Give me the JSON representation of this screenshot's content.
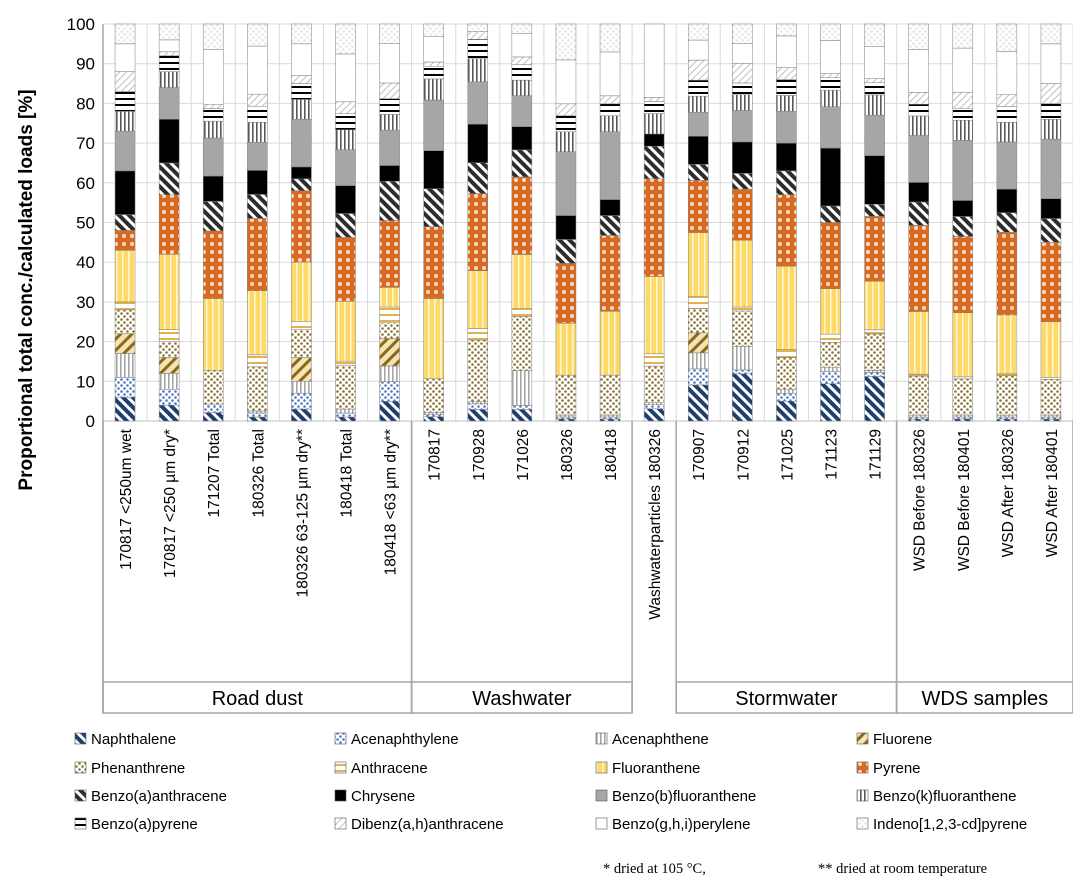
{
  "chart_data": {
    "type": "bar",
    "stacked": true,
    "ylabel": "Proportional total conc./calculated loads [%]",
    "ylim": [
      0,
      100
    ],
    "yticks": [
      0,
      10,
      20,
      30,
      40,
      50,
      60,
      70,
      80,
      90,
      100
    ],
    "grid": true,
    "legend_position": "bottom",
    "groups": [
      {
        "label": "Road dust",
        "count": 7
      },
      {
        "label": "Washwater",
        "count": 5
      },
      {
        "label": "",
        "count": 1
      },
      {
        "label": "Stormwater",
        "count": 5
      },
      {
        "label": "WDS samples",
        "count": 4
      }
    ],
    "categories": [
      "170817 <250um  wet",
      "170817 <250 µm dry*",
      "171207 Total",
      "180326 Total",
      "180326  63-125  µm dry**",
      "180418 Total",
      "180418 <63 µm dry**",
      "170817",
      "170928",
      "171026",
      "180326",
      "180418",
      "Washwaterparticles 180326",
      "170907",
      "170912",
      "171025",
      "171123",
      "171129",
      "WSD Before 180326",
      "WSD Before 180401",
      "WSD After 180326",
      "WSD After 180401"
    ],
    "series": [
      {
        "name": "Naphthalene",
        "color": "#1f3f6e",
        "pattern": "stripe",
        "values": [
          6,
          4,
          2,
          1,
          3,
          1,
          5,
          1,
          3,
          3,
          0.5,
          0.5,
          3,
          9,
          12,
          5,
          9,
          11,
          0.5,
          0.5,
          0.5,
          0.5
        ]
      },
      {
        "name": "Acenaphthylene",
        "color": "#4f7ac7",
        "pattern": "dots",
        "values": [
          5,
          4,
          2,
          1,
          4,
          1,
          5,
          0.5,
          1.5,
          1,
          0.5,
          0.5,
          1,
          4,
          1,
          2,
          3,
          1,
          0.5,
          0.5,
          0.5,
          0.5
        ]
      },
      {
        "name": "Acenaphthene",
        "color": "#a6a6a6",
        "pattern": "vlines",
        "values": [
          6,
          4,
          0,
          0.5,
          3,
          1,
          4,
          0.5,
          0.5,
          9,
          0.5,
          0.5,
          0.5,
          4,
          6,
          1,
          1,
          0.5,
          0.5,
          0.5,
          0.5,
          0.5
        ]
      },
      {
        "name": "Fluorene",
        "color": "#8b6914",
        "pattern": "diag",
        "values": [
          5,
          4,
          0,
          0,
          6,
          0,
          7,
          0,
          0,
          0,
          0,
          0,
          0,
          5,
          0,
          0,
          0,
          0,
          0,
          0,
          0,
          0
        ]
      },
      {
        "name": "Phenanthrene",
        "color": "#8b7536",
        "pattern": "dots",
        "values": [
          6,
          4,
          8,
          11,
          7,
          11,
          4,
          8,
          16,
          14,
          10,
          10,
          9,
          6,
          9,
          8,
          6,
          9,
          10,
          9,
          10,
          9
        ]
      },
      {
        "name": "Anthracene",
        "color": "#e6b04a",
        "pattern": "hline",
        "values": [
          2,
          3,
          0,
          3,
          2,
          1,
          4,
          0,
          3,
          2,
          0,
          0,
          3,
          3,
          1,
          2,
          2,
          1,
          0.5,
          0.5,
          0.5,
          0.5
        ]
      },
      {
        "name": "Fluoranthene",
        "color": "#ffd966",
        "pattern": "vstripes",
        "values": [
          13,
          19,
          17,
          16,
          15,
          15,
          5,
          19,
          15,
          14,
          13,
          16,
          19,
          16,
          17,
          21,
          11,
          12,
          16,
          16,
          15,
          14
        ]
      },
      {
        "name": "Pyrene",
        "color": "#d86a22",
        "pattern": "circles",
        "values": [
          5,
          15,
          16,
          18,
          18,
          16,
          17,
          17,
          20,
          20,
          15,
          19,
          24,
          13,
          13,
          18,
          16,
          16,
          22,
          19,
          21,
          20
        ]
      },
      {
        "name": "Benzo(a)anthracene",
        "color": "#2d2d2d",
        "pattern": "stripe",
        "values": [
          4,
          8,
          7,
          6,
          3,
          6,
          10,
          9,
          8,
          7,
          6,
          5,
          8,
          4,
          4,
          6,
          4,
          3,
          6,
          5,
          5,
          6
        ]
      },
      {
        "name": "Chrysene",
        "color": "#000000",
        "pattern": "solid",
        "values": [
          11,
          11,
          6,
          6,
          3,
          7,
          4,
          9,
          10,
          6,
          6,
          4,
          3,
          7,
          8,
          7,
          14,
          12,
          5,
          4,
          6,
          5
        ]
      },
      {
        "name": "Benzo(b)fluoranthene",
        "color": "#a6a6a6",
        "pattern": "solid",
        "values": [
          10,
          8,
          9,
          7,
          12,
          9,
          9,
          12,
          11,
          8,
          16,
          17,
          0,
          6,
          8,
          8,
          10,
          10,
          12,
          15,
          12,
          15
        ]
      },
      {
        "name": "Benzo(k)fluoranthene",
        "color": "#595959",
        "pattern": "vlines",
        "values": [
          5,
          4,
          4,
          5,
          5,
          5,
          4,
          5,
          6,
          4,
          5,
          4,
          5,
          4,
          4,
          4,
          4,
          5,
          5,
          5,
          5,
          5
        ]
      },
      {
        "name": "Benzo(a)pyrene",
        "color": "#000000",
        "pattern": "hline",
        "values": [
          5,
          4,
          3,
          4,
          4,
          4,
          4,
          3,
          5,
          4,
          4,
          3,
          3,
          4,
          3,
          4,
          3,
          3,
          3,
          3,
          4,
          4
        ]
      },
      {
        "name": "Dibenz(a,h)anthracene",
        "color": "#bfbfbf",
        "pattern": "crosshatch",
        "values": [
          5,
          1,
          1,
          3,
          2,
          3,
          4,
          1,
          2,
          2,
          3,
          2,
          1,
          5,
          5,
          3,
          1,
          1,
          3,
          4,
          3,
          5
        ]
      },
      {
        "name": "Benzo(g,h,i)perylene",
        "color": "#ffffff",
        "pattern": "solid",
        "values": [
          7,
          3,
          13,
          12,
          8,
          12,
          10,
          6,
          0,
          6,
          11,
          11,
          18,
          5,
          5,
          8,
          8,
          8,
          11,
          11,
          11,
          10
        ]
      },
      {
        "name": "Indeno[1,2,3-cd]pyrene",
        "color": "#e6e6e6",
        "pattern": "dots",
        "values": [
          5,
          4,
          6,
          5.5,
          5,
          7.5,
          5,
          3,
          2,
          2.5,
          9,
          7,
          0,
          4,
          5,
          3,
          4,
          5.5,
          6.5,
          6,
          7,
          5
        ]
      }
    ],
    "notes": [
      "* dried at 105 °C,",
      "** dried at room temperature"
    ]
  }
}
